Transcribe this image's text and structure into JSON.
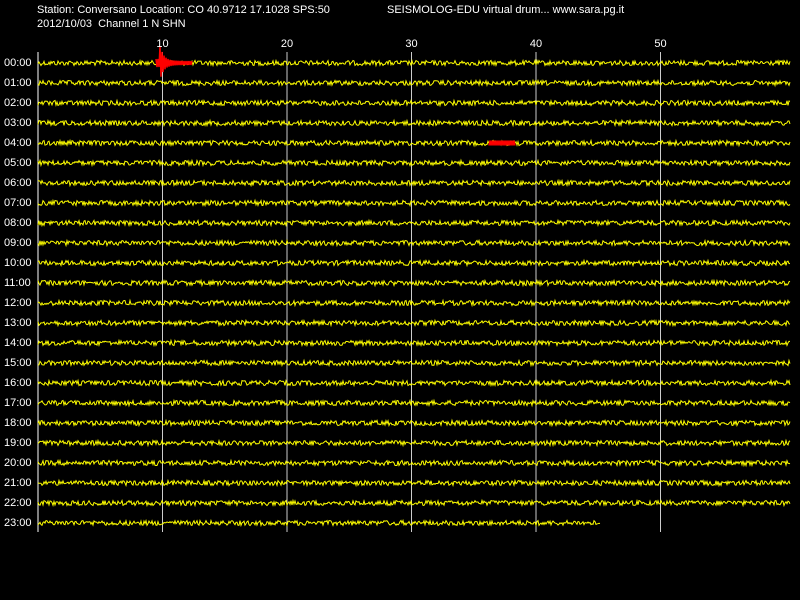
{
  "header": {
    "station": "Station: Conversano Location: CO 40.9712 17.1028 SPS:50",
    "program": "SEISMOLOG-EDU virtual drum... www.sara.pg.it",
    "date_channel": "2012/10/03  Channel 1 N SHN"
  },
  "minute_ticks": [
    10,
    20,
    30,
    40,
    50
  ],
  "rows": [
    "00:00",
    "01:00",
    "02:00",
    "03:00",
    "04:00",
    "05:00",
    "06:00",
    "07:00",
    "08:00",
    "09:00",
    "10:00",
    "11:00",
    "12:00",
    "13:00",
    "14:00",
    "15:00",
    "16:00",
    "17:00",
    "18:00",
    "19:00",
    "20:00",
    "21:00",
    "22:00",
    "23:00"
  ]
}
